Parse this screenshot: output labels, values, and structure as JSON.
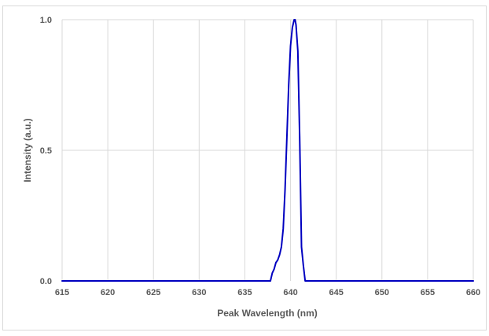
{
  "chart_data": {
    "type": "line",
    "title": "",
    "xlabel": "Peak Wavelength (nm)",
    "ylabel": "Intensity (a.u.)",
    "xlim": [
      615,
      660
    ],
    "ylim": [
      0,
      1
    ],
    "xticks": [
      615,
      620,
      625,
      630,
      635,
      640,
      645,
      650,
      655,
      660
    ],
    "xtick_labels": [
      "615",
      "620",
      "625",
      "630",
      "635",
      "640",
      "645",
      "650",
      "655",
      "660"
    ],
    "yticks": [
      0,
      0.5,
      1
    ],
    "ytick_labels": [
      "0.0",
      "0.5",
      "1.0"
    ],
    "grid": true,
    "legend": false,
    "series_color": "#0000C0",
    "gridline_color": "#D9D9D9",
    "series": [
      {
        "x": [
          615,
          637.8,
          638.0,
          638.2,
          638.4,
          638.6,
          638.8,
          639.0,
          639.2,
          639.4,
          639.6,
          639.8,
          640.0,
          640.2,
          640.4,
          640.5,
          640.6,
          640.8,
          641.0,
          641.2,
          641.4,
          641.6,
          660
        ],
        "y": [
          0,
          0,
          0.03,
          0.045,
          0.07,
          0.08,
          0.1,
          0.13,
          0.2,
          0.35,
          0.55,
          0.75,
          0.9,
          0.97,
          1.0,
          1.0,
          0.98,
          0.88,
          0.55,
          0.13,
          0.06,
          0,
          0
        ]
      }
    ]
  }
}
